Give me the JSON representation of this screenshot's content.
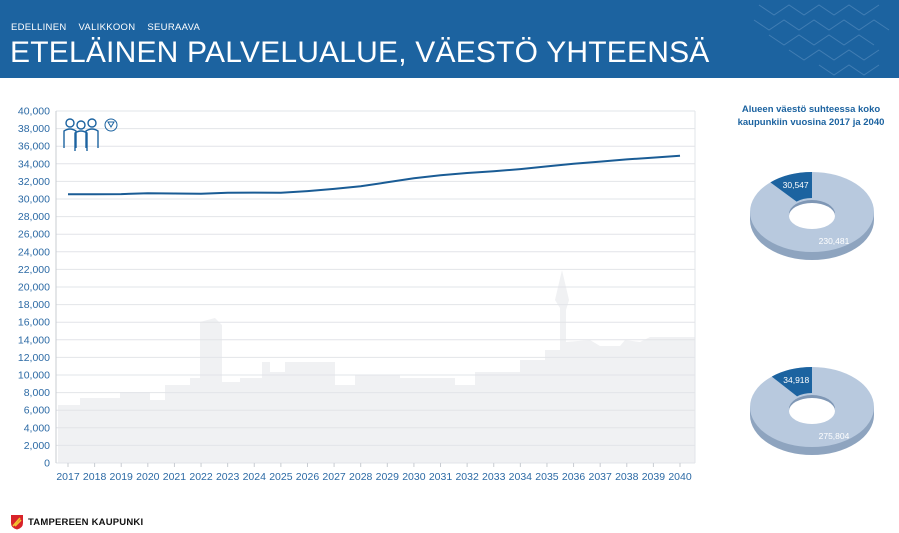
{
  "nav": {
    "prev": "EDELLINEN",
    "menu": "VALIKKOON",
    "next": "SEURAAVA"
  },
  "page": {
    "title": "ETELÄINEN PALVELUALUE, VÄESTÖ YHTEENSÄ"
  },
  "icons": {
    "people": "people-icon",
    "filter": "filter-icon",
    "logo": "city-crest-icon"
  },
  "colors": {
    "header": "#1c63a0",
    "line": "#1a5c95",
    "axis_text": "#2c6aa5",
    "donut_light": "#b8c9de",
    "donut_dark": "#1c63a0"
  },
  "chart_data": [
    {
      "type": "line",
      "x": [
        "2017",
        "2018",
        "2019",
        "2020",
        "2021",
        "2022",
        "2023",
        "2024",
        "2025",
        "2026",
        "2027",
        "2028",
        "2029",
        "2030",
        "2031",
        "2032",
        "2033",
        "2034",
        "2035",
        "2036",
        "2037",
        "2038",
        "2039",
        "2040"
      ],
      "series": [
        {
          "values": [
            30547,
            30550,
            30560,
            30650,
            30620,
            30600,
            30700,
            30730,
            30700,
            30900,
            31150,
            31450,
            31900,
            32350,
            32700,
            32950,
            33150,
            33400,
            33700,
            34000,
            34250,
            34500,
            34700,
            34918
          ]
        }
      ],
      "ylim": [
        0,
        40000
      ],
      "yticks": [
        "0",
        "2,000",
        "4,000",
        "6,000",
        "8,000",
        "10,000",
        "12,000",
        "14,000",
        "16,000",
        "18,000",
        "20,000",
        "22,000",
        "24,000",
        "26,000",
        "28,000",
        "30,000",
        "32,000",
        "34,000",
        "36,000",
        "38,000",
        "40,000"
      ],
      "grid": true
    },
    {
      "type": "pie",
      "title": "Alueen väestö suhteessa koko kaupunkiin vuosina 2017 ja 2040",
      "labels": [
        "30,547",
        "230,481"
      ],
      "values": [
        30547,
        230481
      ]
    },
    {
      "type": "pie",
      "labels": [
        "34,918",
        "275,804"
      ],
      "values": [
        34918,
        275804
      ]
    }
  ],
  "footer": {
    "logo_text": "TAMPEREEN KAUPUNKI"
  }
}
